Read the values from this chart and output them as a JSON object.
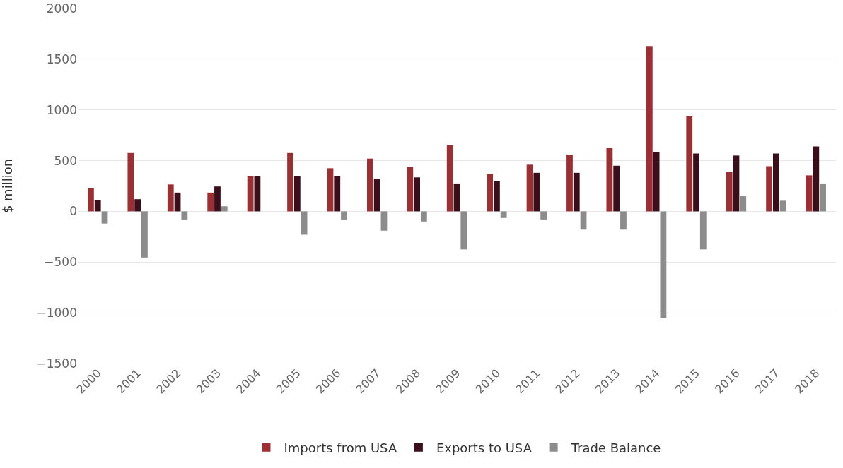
{
  "chart_data": {
    "type": "bar",
    "ylabel": "$ million",
    "categories": [
      "2000",
      "2001",
      "2002",
      "2003",
      "2004",
      "2005",
      "2006",
      "2007",
      "2008",
      "2009",
      "2010",
      "2011",
      "2012",
      "2013",
      "2014",
      "2015",
      "2016",
      "2017",
      "2018"
    ],
    "series": [
      {
        "name": "Imports from USA",
        "color": "#9b3034",
        "values": [
          230,
          575,
          265,
          185,
          345,
          575,
          425,
          520,
          435,
          655,
          370,
          460,
          560,
          630,
          1630,
          935,
          390,
          445,
          355
        ]
      },
      {
        "name": "Exports to USA",
        "color": "#3a0e1a",
        "values": [
          110,
          120,
          185,
          245,
          345,
          345,
          345,
          320,
          335,
          275,
          300,
          380,
          380,
          450,
          585,
          570,
          550,
          570,
          640
        ]
      },
      {
        "name": "Trade Balance",
        "color": "#8c8c8c",
        "values": [
          -120,
          -455,
          -80,
          50,
          0,
          -230,
          -80,
          -190,
          -100,
          -375,
          -65,
          -80,
          -180,
          -180,
          -1050,
          -375,
          150,
          105,
          275
        ]
      }
    ],
    "ylim": [
      -1500,
      2000
    ],
    "yticks": [
      -1500,
      -1000,
      -500,
      0,
      500,
      1000,
      1500,
      2000
    ],
    "grid": "y",
    "legend": "bottom"
  }
}
